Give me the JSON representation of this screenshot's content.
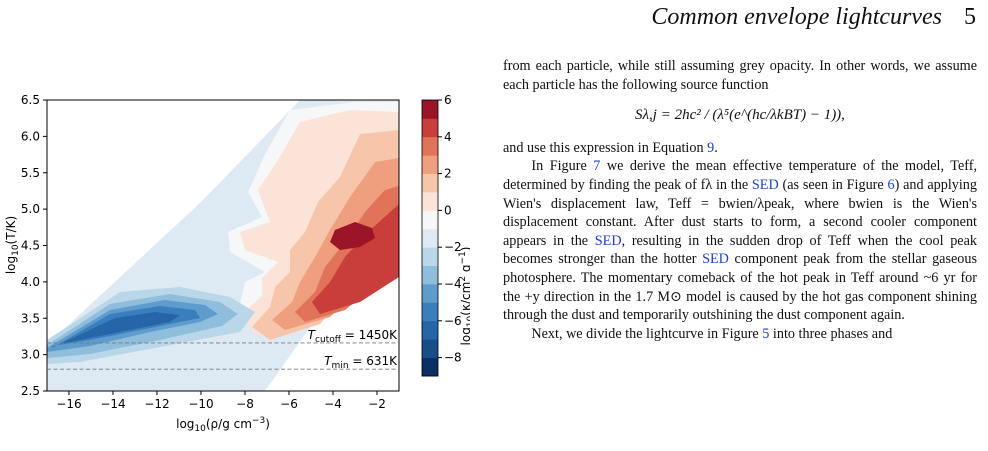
{
  "header": {
    "title": "Common envelope lightcurves",
    "page_number": "5"
  },
  "chart_data": {
    "type": "heatmap",
    "xlabel": "log10(ρ/g cm−3)",
    "ylabel": "log10(T/K)",
    "xlim": [
      -17,
      -1
    ],
    "ylim": [
      2.5,
      6.5
    ],
    "xticks": [
      "−16",
      "−14",
      "−12",
      "−10",
      "−8",
      "−6",
      "−4",
      "−2"
    ],
    "yticks": [
      "2.5",
      "3.0",
      "3.5",
      "4.0",
      "4.5",
      "5.0",
      "5.5",
      "6.0",
      "6.5"
    ],
    "colorbar": {
      "label": "log10(κ/cm2 g−1)",
      "range": [
        -9,
        6
      ],
      "ticks": [
        "6",
        "4",
        "2",
        "0",
        "−2",
        "−4",
        "−6",
        "−8"
      ],
      "levels": [
        {
          "low": -9,
          "color": "#0b2f64"
        },
        {
          "low": -8,
          "color": "#174e89"
        },
        {
          "low": -7,
          "color": "#2565a8"
        },
        {
          "low": -6,
          "color": "#3a7fbd"
        },
        {
          "low": -5,
          "color": "#5d9ccc"
        },
        {
          "low": -4,
          "color": "#8fbedd"
        },
        {
          "low": -3,
          "color": "#bad7ea"
        },
        {
          "low": -2,
          "color": "#dde9f3"
        },
        {
          "low": -1,
          "color": "#f6f7f8"
        },
        {
          "low": 0,
          "color": "#fbe4d7"
        },
        {
          "low": 1,
          "color": "#f7c5aa"
        },
        {
          "low": 2,
          "color": "#ef9f7e"
        },
        {
          "low": 3,
          "color": "#e07358"
        },
        {
          "low": 4,
          "color": "#c93e3a"
        },
        {
          "low": 5,
          "color": "#9b1428"
        }
      ]
    },
    "annotations": [
      {
        "label": "T",
        "sub": "cutoff",
        "value": "= 1450K",
        "y": 3.16
      },
      {
        "label": "T",
        "sub": "min",
        "value": "= 631K",
        "y": 2.8
      }
    ]
  },
  "text": {
    "p1": "from each particle, while still assuming grey opacity. In other words, we assume each particle has the following source function",
    "eq": "Sλ,j = 2hc² / (λ⁵(e^(hc/λkBT) − 1)),",
    "p2a": "and use this expression in Equation ",
    "p2ref": "9",
    "p2b": ".",
    "p3a": "In Figure ",
    "p3ref1": "7",
    "p3b": " we derive the mean effective temperature of the model, Teff, determined by finding the peak of fλ in the ",
    "p3ref2": "SED",
    "p3c": " (as seen in Figure ",
    "p3ref3": "6",
    "p3d": ") and applying Wien's displacement law, Teff = bwien/λpeak, where bwien is the Wien's displacement constant. After dust starts to form, a second cooler component appears in the ",
    "p3ref4": "SED",
    "p3e": ", resulting in the sudden drop of Teff when the cool peak becomes stronger than the hotter ",
    "p3ref5": "SED",
    "p3f": " component peak from the stellar gaseous photosphere. The momentary comeback of the hot peak in Teff around ~6 yr for the +y direction in the 1.7 M⊙ model is caused by the hot gas component shining through the dust and temporarily outshining the dust component again.",
    "p4a": "Next, we divide the lightcurve in Figure ",
    "p4ref": "5",
    "p4b": " into three phases and"
  }
}
